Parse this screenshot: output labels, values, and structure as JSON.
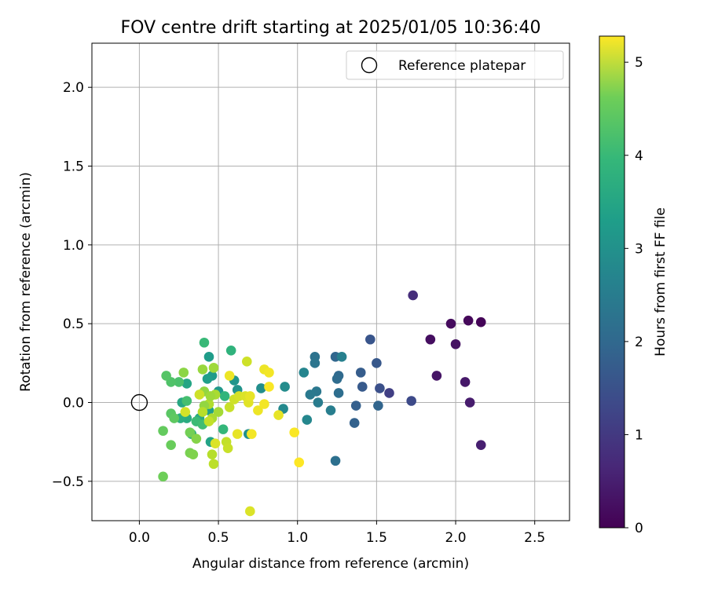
{
  "chart_data": {
    "type": "scatter",
    "title": "FOV centre drift starting at 2025/01/05 10:36:40",
    "xlabel": "Angular distance from reference (arcmin)",
    "ylabel": "Rotation from reference (arcmin)",
    "xlim": [
      -0.3,
      2.72
    ],
    "ylim": [
      -0.75,
      2.28
    ],
    "xticks": [
      0.0,
      0.5,
      1.0,
      1.5,
      2.0,
      2.5
    ],
    "xtick_labels": [
      "0.0",
      "0.5",
      "1.0",
      "1.5",
      "2.0",
      "2.5"
    ],
    "yticks": [
      -0.5,
      0.0,
      0.5,
      1.0,
      1.5,
      2.0
    ],
    "ytick_labels": [
      "−0.5",
      "0.0",
      "0.5",
      "1.0",
      "1.5",
      "2.0"
    ],
    "grid": true,
    "legend": {
      "position": "top-right",
      "entries": [
        "Reference platepar"
      ]
    },
    "reference_point": {
      "x": 0.0,
      "y": 0.0,
      "label": "Reference platepar"
    },
    "colorbar": {
      "label": "Hours from first FF file",
      "colormap": "viridis",
      "range": [
        0,
        5.28
      ],
      "ticks": [
        0,
        1,
        2,
        3,
        4,
        5
      ],
      "tick_labels": [
        "0",
        "1",
        "2",
        "3",
        "4",
        "5"
      ]
    },
    "points": [
      {
        "x": 2.16,
        "y": 0.51,
        "h": 0.05
      },
      {
        "x": 2.08,
        "y": 0.52,
        "h": 0.1
      },
      {
        "x": 1.97,
        "y": 0.5,
        "h": 0.15
      },
      {
        "x": 1.84,
        "y": 0.4,
        "h": 0.2
      },
      {
        "x": 2.0,
        "y": 0.37,
        "h": 0.25
      },
      {
        "x": 1.88,
        "y": 0.17,
        "h": 0.3
      },
      {
        "x": 2.06,
        "y": 0.13,
        "h": 0.35
      },
      {
        "x": 2.09,
        "y": 0.0,
        "h": 0.4
      },
      {
        "x": 2.16,
        "y": -0.27,
        "h": 0.45
      },
      {
        "x": 1.73,
        "y": 0.68,
        "h": 0.7
      },
      {
        "x": 1.58,
        "y": 0.06,
        "h": 1.0
      },
      {
        "x": 1.72,
        "y": 0.01,
        "h": 1.2
      },
      {
        "x": 1.52,
        "y": 0.09,
        "h": 1.3
      },
      {
        "x": 1.46,
        "y": 0.4,
        "h": 1.4
      },
      {
        "x": 1.5,
        "y": 0.25,
        "h": 1.45
      },
      {
        "x": 1.41,
        "y": 0.1,
        "h": 1.5
      },
      {
        "x": 1.4,
        "y": 0.19,
        "h": 1.55
      },
      {
        "x": 1.37,
        "y": -0.02,
        "h": 1.6
      },
      {
        "x": 1.36,
        "y": -0.13,
        "h": 1.65
      },
      {
        "x": 1.51,
        "y": -0.02,
        "h": 1.7
      },
      {
        "x": 1.24,
        "y": 0.29,
        "h": 1.75
      },
      {
        "x": 1.26,
        "y": 0.17,
        "h": 1.8
      },
      {
        "x": 1.25,
        "y": 0.15,
        "h": 1.85
      },
      {
        "x": 1.26,
        "y": 0.06,
        "h": 1.9
      },
      {
        "x": 1.24,
        "y": -0.37,
        "h": 1.95
      },
      {
        "x": 1.11,
        "y": 0.29,
        "h": 2.0
      },
      {
        "x": 1.11,
        "y": 0.25,
        "h": 2.05
      },
      {
        "x": 1.12,
        "y": 0.07,
        "h": 2.1
      },
      {
        "x": 1.08,
        "y": 0.05,
        "h": 2.15
      },
      {
        "x": 1.13,
        "y": 0.0,
        "h": 2.2
      },
      {
        "x": 1.21,
        "y": -0.05,
        "h": 2.25
      },
      {
        "x": 1.28,
        "y": 0.29,
        "h": 2.3
      },
      {
        "x": 1.04,
        "y": 0.19,
        "h": 2.4
      },
      {
        "x": 1.06,
        "y": -0.11,
        "h": 2.45
      },
      {
        "x": 0.91,
        "y": -0.04,
        "h": 2.5
      },
      {
        "x": 0.92,
        "y": 0.1,
        "h": 2.55
      },
      {
        "x": 0.77,
        "y": 0.09,
        "h": 2.6
      },
      {
        "x": 0.69,
        "y": -0.2,
        "h": 2.65
      },
      {
        "x": 0.62,
        "y": 0.08,
        "h": 2.7
      },
      {
        "x": 0.6,
        "y": 0.14,
        "h": 2.75
      },
      {
        "x": 0.5,
        "y": 0.07,
        "h": 2.8
      },
      {
        "x": 0.46,
        "y": 0.17,
        "h": 2.85
      },
      {
        "x": 0.44,
        "y": 0.29,
        "h": 2.9
      },
      {
        "x": 0.43,
        "y": 0.15,
        "h": 2.95
      },
      {
        "x": 0.44,
        "y": -0.05,
        "h": 3.0
      },
      {
        "x": 0.45,
        "y": -0.25,
        "h": 3.05
      },
      {
        "x": 0.3,
        "y": 0.12,
        "h": 3.1
      },
      {
        "x": 0.27,
        "y": 0.0,
        "h": 3.15
      },
      {
        "x": 0.38,
        "y": -0.1,
        "h": 3.2
      },
      {
        "x": 0.3,
        "y": -0.1,
        "h": 3.25
      },
      {
        "x": 0.26,
        "y": -0.1,
        "h": 3.3
      },
      {
        "x": 0.33,
        "y": -0.2,
        "h": 3.35
      },
      {
        "x": 0.58,
        "y": 0.33,
        "h": 3.4
      },
      {
        "x": 0.54,
        "y": 0.04,
        "h": 3.45
      },
      {
        "x": 0.53,
        "y": -0.17,
        "h": 3.5
      },
      {
        "x": 0.41,
        "y": 0.38,
        "h": 3.55
      },
      {
        "x": 0.36,
        "y": -0.12,
        "h": 3.6
      },
      {
        "x": 0.4,
        "y": -0.14,
        "h": 3.65
      },
      {
        "x": 0.3,
        "y": 0.01,
        "h": 3.7
      },
      {
        "x": 0.25,
        "y": 0.13,
        "h": 3.75
      },
      {
        "x": 0.2,
        "y": 0.13,
        "h": 3.8
      },
      {
        "x": 0.17,
        "y": 0.17,
        "h": 3.85
      },
      {
        "x": 0.2,
        "y": -0.07,
        "h": 3.9
      },
      {
        "x": 0.22,
        "y": -0.1,
        "h": 3.95
      },
      {
        "x": 0.15,
        "y": -0.18,
        "h": 4.0
      },
      {
        "x": 0.2,
        "y": -0.27,
        "h": 4.05
      },
      {
        "x": 0.15,
        "y": -0.47,
        "h": 4.1
      },
      {
        "x": 0.32,
        "y": -0.19,
        "h": 4.15
      },
      {
        "x": 0.32,
        "y": -0.32,
        "h": 4.2
      },
      {
        "x": 0.34,
        "y": -0.33,
        "h": 4.25
      },
      {
        "x": 0.36,
        "y": -0.23,
        "h": 4.3
      },
      {
        "x": 0.28,
        "y": 0.19,
        "h": 4.35
      },
      {
        "x": 0.41,
        "y": 0.07,
        "h": 4.4
      },
      {
        "x": 0.4,
        "y": 0.21,
        "h": 4.45
      },
      {
        "x": 0.47,
        "y": 0.22,
        "h": 4.5
      },
      {
        "x": 0.5,
        "y": -0.06,
        "h": 4.55
      },
      {
        "x": 0.48,
        "y": 0.05,
        "h": 4.6
      },
      {
        "x": 0.44,
        "y": -0.01,
        "h": 4.65
      },
      {
        "x": 0.46,
        "y": -0.33,
        "h": 4.7
      },
      {
        "x": 0.47,
        "y": -0.39,
        "h": 4.75
      },
      {
        "x": 0.55,
        "y": -0.25,
        "h": 4.8
      },
      {
        "x": 0.56,
        "y": -0.29,
        "h": 4.85
      },
      {
        "x": 0.38,
        "y": 0.05,
        "h": 4.9
      },
      {
        "x": 0.29,
        "y": -0.06,
        "h": 4.95
      },
      {
        "x": 0.48,
        "y": -0.26,
        "h": 5.0
      },
      {
        "x": 0.41,
        "y": -0.02,
        "h": 4.4
      },
      {
        "x": 0.45,
        "y": 0.04,
        "h": 4.5
      },
      {
        "x": 0.46,
        "y": -0.1,
        "h": 4.6
      },
      {
        "x": 0.4,
        "y": -0.06,
        "h": 4.7
      },
      {
        "x": 0.44,
        "y": -0.12,
        "h": 4.8
      },
      {
        "x": 0.57,
        "y": -0.03,
        "h": 4.85
      },
      {
        "x": 0.6,
        "y": 0.02,
        "h": 4.9
      },
      {
        "x": 0.63,
        "y": 0.04,
        "h": 4.95
      },
      {
        "x": 0.68,
        "y": 0.26,
        "h": 4.9
      },
      {
        "x": 0.67,
        "y": 0.04,
        "h": 5.0
      },
      {
        "x": 0.69,
        "y": 0.0,
        "h": 5.05
      },
      {
        "x": 0.7,
        "y": 0.04,
        "h": 5.1
      },
      {
        "x": 0.57,
        "y": 0.17,
        "h": 5.15
      },
      {
        "x": 0.62,
        "y": -0.2,
        "h": 5.1
      },
      {
        "x": 0.71,
        "y": -0.2,
        "h": 5.2
      },
      {
        "x": 0.75,
        "y": -0.05,
        "h": 5.15
      },
      {
        "x": 0.79,
        "y": -0.01,
        "h": 5.2
      },
      {
        "x": 0.79,
        "y": 0.21,
        "h": 5.15
      },
      {
        "x": 0.82,
        "y": 0.19,
        "h": 5.2
      },
      {
        "x": 0.82,
        "y": 0.1,
        "h": 5.25
      },
      {
        "x": 0.88,
        "y": -0.08,
        "h": 5.1
      },
      {
        "x": 0.98,
        "y": -0.19,
        "h": 5.25
      },
      {
        "x": 1.01,
        "y": -0.38,
        "h": 5.28
      },
      {
        "x": 0.7,
        "y": -0.69,
        "h": 5.0
      }
    ]
  }
}
